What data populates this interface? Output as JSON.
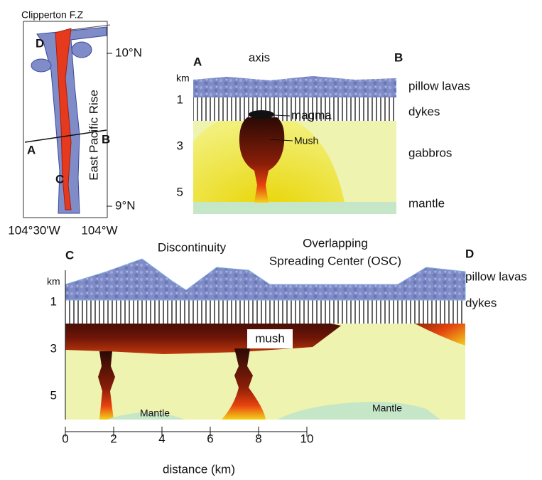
{
  "map": {
    "labels": {
      "fracture_zone": "Clipperton F.Z",
      "ridge_name": "East Pacific Rise",
      "lat_north": "10°N",
      "lat_south": "9°N",
      "lon_west": "104°30'W",
      "lon_east": "104°W",
      "point_a": "A",
      "point_b": "B",
      "point_c": "C",
      "point_d": "D"
    }
  },
  "section_ab": {
    "end_a": "A",
    "end_b": "B",
    "axis": "axis",
    "depth_unit": "km",
    "depth_labels": [
      "1",
      "3",
      "5"
    ],
    "layers": [
      "pillow lavas",
      "dykes",
      "gabbros",
      "mantle"
    ],
    "magma": "magma",
    "mush": "Mush"
  },
  "section_cd": {
    "end_c": "C",
    "end_d": "D",
    "discontinuity": "Discontinuity",
    "osc": [
      "Overlapping",
      "Spreading Center (OSC)"
    ],
    "depth_unit": "km",
    "depth_labels": [
      "1",
      "3",
      "5"
    ],
    "layers": [
      "pillow lavas",
      "dykes"
    ],
    "mush": "mush",
    "mantle_labels": [
      "Mantle",
      "Mantle"
    ],
    "distance_ticks": [
      "0",
      "2",
      "4",
      "6",
      "8",
      "10"
    ],
    "distance_title": "distance (km)"
  }
}
